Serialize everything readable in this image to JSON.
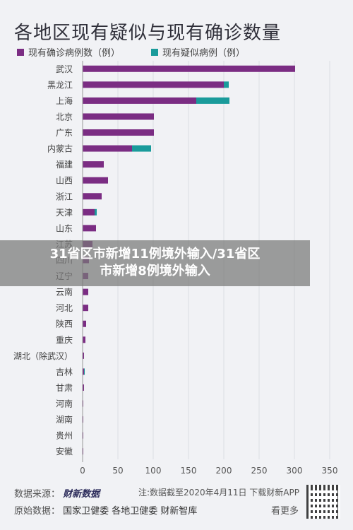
{
  "header": {
    "title": "各地区现有疑似与现有确诊数量"
  },
  "legend": {
    "items": [
      {
        "label": "现有确诊病例数（例）",
        "color": "#7b2d83"
      },
      {
        "label": "现有疑似病例（例）",
        "color": "#1a9b9b"
      }
    ]
  },
  "overlay": {
    "line1": "31省区市新增11例境外输入/31省区",
    "line2": "市新增8例境外输入"
  },
  "footer": {
    "source_label": "数据来源：",
    "source_value": "财新数据",
    "note": "注:数据截至2020年4月11日 下载财新APP",
    "origin_label": "原始数据：",
    "origin_value": "国家卫健委  各地卫健委  财新智库",
    "scan": "看更多"
  },
  "colors": {
    "confirmed": "#7b2d83",
    "suspected": "#1a9b9b",
    "axis": "#999999",
    "grid": "#dcdde2"
  },
  "chart_data": {
    "type": "bar",
    "orientation": "horizontal",
    "stacked": true,
    "title": "各地区现有疑似与现有确诊数量",
    "categories": [
      "武汉",
      "黑龙江",
      "上海",
      "北京",
      "广东",
      "内蒙古",
      "福建",
      "山西",
      "浙江",
      "天津",
      "山东",
      "江苏",
      "四川",
      "辽宁",
      "云南",
      "河北",
      "陕西",
      "重庆",
      "湖北（除武汉）",
      "吉林",
      "甘肃",
      "河南",
      "湖南",
      "贵州",
      "安徽"
    ],
    "series": [
      {
        "name": "现有确诊病例数（例）",
        "values": [
          301,
          200,
          161,
          101,
          101,
          70,
          30,
          36,
          27,
          17,
          19,
          14,
          9,
          8,
          8,
          8,
          5,
          4,
          2,
          2,
          2,
          1,
          1,
          1,
          1
        ]
      },
      {
        "name": "现有疑似病例（例）",
        "values": [
          0,
          7,
          47,
          0,
          0,
          27,
          0,
          0,
          0,
          3,
          0,
          0,
          0,
          0,
          0,
          0,
          0,
          0,
          0,
          1,
          0,
          0,
          0,
          0,
          0
        ]
      }
    ],
    "xlim": [
      0,
      350
    ],
    "xticks": [
      0,
      50,
      100,
      150,
      200,
      250,
      300,
      350
    ],
    "grid": true,
    "legend_position": "top-left"
  }
}
